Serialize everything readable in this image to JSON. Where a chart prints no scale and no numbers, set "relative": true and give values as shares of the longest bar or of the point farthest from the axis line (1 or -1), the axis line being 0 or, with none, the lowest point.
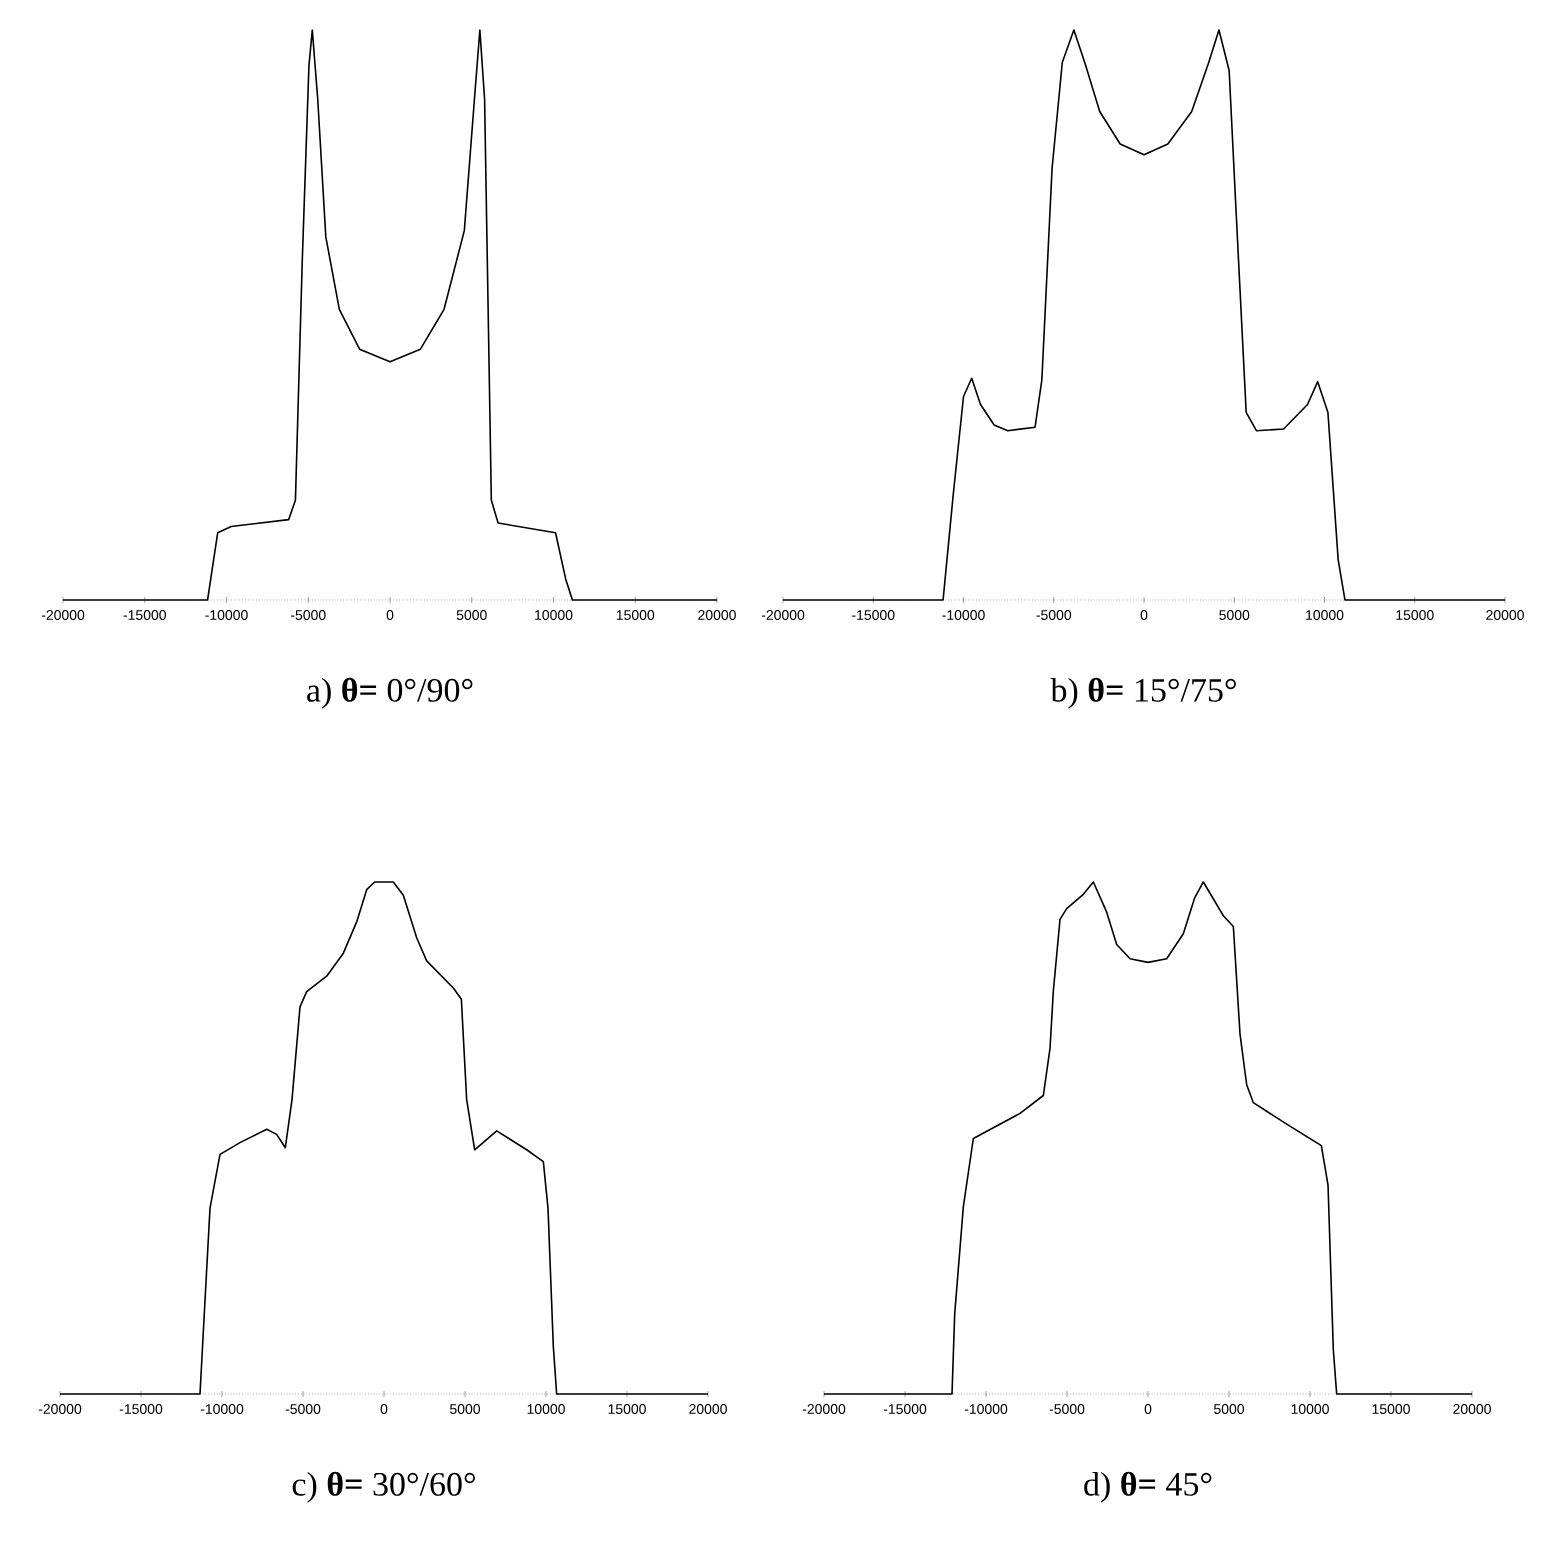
{
  "chart_data": [
    {
      "type": "line",
      "relative": true,
      "color": "#000000",
      "xlabel": "a) **θ=** 0°/90°",
      "xlim": [
        -20000,
        20000
      ],
      "xticks": [
        -20000,
        -15000,
        -10000,
        -5000,
        0,
        5000,
        10000,
        15000,
        20000
      ],
      "tick_labels": "x",
      "x": [
        -20000,
        -11157,
        -10537,
        -9711,
        -6198,
        -5785,
        -5372,
        -4959,
        -4752,
        -4421,
        -3926,
        -3099,
        -1860,
        0,
        1860,
        3306,
        4545,
        5165,
        5496,
        5785,
        6198,
        6612,
        10124,
        10744,
        11157,
        20000
      ],
      "values": [
        0,
        0,
        0.118,
        0.129,
        0.141,
        0.175,
        0.59,
        0.937,
        1.0,
        0.879,
        0.637,
        0.51,
        0.44,
        0.418,
        0.44,
        0.51,
        0.648,
        0.879,
        1.0,
        0.879,
        0.175,
        0.135,
        0.118,
        0.037,
        0,
        0
      ]
    },
    {
      "type": "line",
      "relative": true,
      "color": "#000000",
      "xlabel": "b) **θ=** 15°/75°",
      "xlim": [
        -20000,
        20000
      ],
      "xticks": [
        -20000,
        -15000,
        -10000,
        -5000,
        0,
        5000,
        10000,
        15000,
        20000
      ],
      "tick_labels": "x",
      "x": [
        -20000,
        -11132,
        -10566,
        -10000,
        -9547,
        -9057,
        -8302,
        -7547,
        -6038,
        -5660,
        -5094,
        -4528,
        -3887,
        -3283,
        -2453,
        -1321,
        0,
        1321,
        2642,
        3585,
        4151,
        4717,
        5094,
        5660,
        6226,
        7736,
        9057,
        9623,
        10189,
        10755,
        11132,
        20000
      ],
      "values": [
        0,
        0,
        0.186,
        0.357,
        0.389,
        0.343,
        0.307,
        0.297,
        0.303,
        0.386,
        0.757,
        0.943,
        1.0,
        0.943,
        0.857,
        0.8,
        0.781,
        0.8,
        0.857,
        0.943,
        1.0,
        0.929,
        0.686,
        0.329,
        0.297,
        0.3,
        0.343,
        0.383,
        0.329,
        0.071,
        0,
        0
      ]
    },
    {
      "type": "line",
      "relative": true,
      "color": "#000000",
      "xlabel": "c) **θ=** 30°/60°",
      "xlim": [
        -20000,
        20000
      ],
      "xticks": [
        -20000,
        -15000,
        -10000,
        -5000,
        0,
        5000,
        10000,
        15000,
        20000
      ],
      "tick_labels": "x",
      "x": [
        -20000,
        -11358,
        -11152,
        -10741,
        -10123,
        -8889,
        -7243,
        -6626,
        -6091,
        -5679,
        -5185,
        -4774,
        -3539,
        -2510,
        -1687,
        -1070,
        -576,
        0,
        576,
        1193,
        2016,
        2634,
        4280,
        4774,
        5103,
        5597,
        6955,
        8807,
        9835,
        10123,
        10453,
        10658,
        20000
      ],
      "values": [
        0,
        0,
        0.122,
        0.363,
        0.468,
        0.491,
        0.517,
        0.507,
        0.481,
        0.575,
        0.756,
        0.786,
        0.816,
        0.861,
        0.922,
        0.985,
        1.0,
        1.0,
        1.0,
        0.974,
        0.891,
        0.846,
        0.793,
        0.771,
        0.575,
        0.477,
        0.514,
        0.477,
        0.454,
        0.363,
        0.092,
        0,
        0
      ]
    },
    {
      "type": "line",
      "relative": true,
      "color": "#000000",
      "xlabel": "d) **θ=** 45°",
      "xlim": [
        -20000,
        20000
      ],
      "xticks": [
        -20000,
        -15000,
        -10000,
        -5000,
        0,
        5000,
        10000,
        15000,
        20000
      ],
      "tick_labels": "x",
      "x": [
        -20000,
        -12099,
        -11934,
        -11399,
        -10782,
        -9547,
        -7901,
        -6461,
        -6049,
        -5844,
        -5432,
        -5021,
        -3992,
        -3374,
        -2551,
        -1934,
        -1111,
        0,
        1152,
        2181,
        2881,
        3415,
        4650,
        5267,
        5679,
        6090,
        6502,
        8559,
        10699,
        11111,
        11440,
        11646,
        20000
      ],
      "values": [
        0,
        0,
        0.156,
        0.366,
        0.499,
        0.52,
        0.548,
        0.583,
        0.675,
        0.787,
        0.927,
        0.948,
        0.976,
        1.0,
        0.941,
        0.878,
        0.85,
        0.843,
        0.85,
        0.899,
        0.969,
        1.0,
        0.934,
        0.913,
        0.703,
        0.604,
        0.569,
        0.527,
        0.485,
        0.408,
        0.086,
        0,
        0
      ]
    }
  ]
}
